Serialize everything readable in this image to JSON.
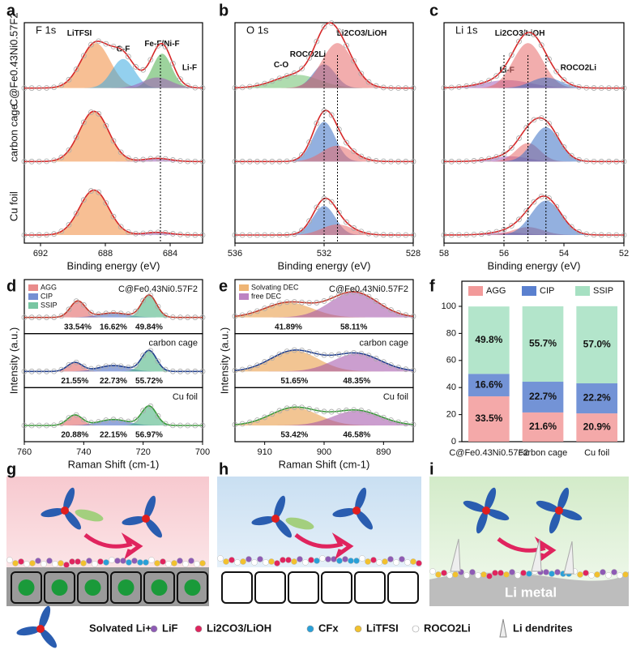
{
  "chart_data": [
    {
      "type": "spectrum",
      "panel": "a",
      "title": "F 1s",
      "xlabel": "Binding energy (eV)",
      "xlim": [
        693,
        682
      ],
      "xticks": [
        692,
        688,
        684
      ],
      "legend": false,
      "line_color": "#d62728",
      "components": [
        {
          "name": "LiTFSI",
          "color": "#f08a3c"
        },
        {
          "name": "C-F",
          "color": "#3aa9e0"
        },
        {
          "name": "Fe-F/Ni-F",
          "color": "#4cae4c"
        },
        {
          "name": "Li-F",
          "color": "#a05cb8"
        }
      ],
      "markers": [
        684.6
      ],
      "rows": [
        {
          "label": "C@Fe0.43Ni0.57F2",
          "peaks": [
            [
              688.6,
              0.85,
              0.9
            ],
            [
              686.9,
              0.55,
              0.7
            ],
            [
              684.5,
              0.65,
              0.6
            ],
            [
              684.8,
              0.2,
              0.9
            ]
          ]
        },
        {
          "label": "carbon cage",
          "peaks": [
            [
              688.7,
              0.95,
              0.9
            ],
            null,
            null,
            [
              684.8,
              0.06,
              0.8
            ]
          ]
        },
        {
          "label": "Cu foil",
          "peaks": [
            [
              688.7,
              0.85,
              0.9
            ],
            null,
            null,
            [
              684.8,
              0.05,
              0.8
            ]
          ]
        }
      ]
    },
    {
      "type": "spectrum",
      "panel": "b",
      "title": "O 1s",
      "xlabel": "Binding energy (eV)",
      "xlim": [
        536,
        528
      ],
      "xticks": [
        536,
        532,
        528
      ],
      "legend": false,
      "line_color": "#d62728",
      "components": [
        {
          "name": "C-O",
          "color": "#6dbf6d"
        },
        {
          "name": "ROCO2Li",
          "color": "#3b6fc4"
        },
        {
          "name": "Li2CO3/LiOH",
          "color": "#e86a6a"
        }
      ],
      "markers": [
        532.0,
        531.4
      ],
      "rows": [
        {
          "peaks": [
            [
              533.2,
              0.25,
              1.0
            ],
            [
              532.0,
              0.45,
              0.5
            ],
            [
              531.4,
              0.85,
              0.7
            ]
          ]
        },
        {
          "peaks": [
            null,
            [
              532.0,
              0.75,
              0.5
            ],
            [
              531.4,
              0.3,
              0.7
            ]
          ]
        },
        {
          "peaks": [
            null,
            [
              532.0,
              0.55,
              0.5
            ],
            [
              531.4,
              0.2,
              0.7
            ]
          ]
        }
      ]
    },
    {
      "type": "spectrum",
      "panel": "c",
      "title": "Li 1s",
      "xlabel": "Binding energy (eV)",
      "xlim": [
        58,
        52
      ],
      "xticks": [
        58,
        56,
        54,
        52
      ],
      "legend": false,
      "line_color": "#d62728",
      "components": [
        {
          "name": "Li-F",
          "color": "#a05cb8"
        },
        {
          "name": "Li2CO3/LiOH",
          "color": "#e86a6a"
        },
        {
          "name": "ROCO2Li",
          "color": "#3b6fc4"
        }
      ],
      "markers": [
        56.0,
        55.2,
        54.6
      ],
      "rows": [
        {
          "peaks": [
            [
              55.9,
              0.15,
              0.8
            ],
            [
              55.2,
              0.85,
              0.5
            ],
            [
              54.6,
              0.2,
              0.5
            ]
          ]
        },
        {
          "peaks": [
            [
              55.8,
              0.1,
              0.6
            ],
            [
              55.2,
              0.35,
              0.4
            ],
            [
              54.6,
              0.65,
              0.45
            ]
          ]
        },
        {
          "peaks": [
            [
              55.9,
              0.05,
              0.6
            ],
            [
              55.2,
              0.15,
              0.5
            ],
            [
              54.6,
              0.65,
              0.5
            ]
          ]
        }
      ]
    },
    {
      "type": "spectrum",
      "panel": "d",
      "ylabel": "Intensity (a.u.)",
      "xlabel": "Raman Shift (cm-1)",
      "xlim": [
        760,
        700
      ],
      "xticks": [
        760,
        740,
        720,
        700
      ],
      "legend": true,
      "components": [
        {
          "name": "AGG",
          "color": "#e05a5a"
        },
        {
          "name": "CIP",
          "color": "#3b5fc0"
        },
        {
          "name": "SSIP",
          "color": "#3fae7a"
        }
      ],
      "rows": [
        {
          "label": "C@Fe0.43Ni0.57F2",
          "line_color": "#c0392b",
          "peaks": [
            [
              742,
              0.55,
              2.5
            ],
            [
              730,
              0.15,
              5
            ],
            [
              718,
              0.75,
              2.5
            ]
          ],
          "percents": [
            33.54,
            16.62,
            49.84
          ],
          "value_labels": [
            "33.54%",
            "16.62%",
            "49.84%"
          ]
        },
        {
          "label": "carbon cage",
          "line_color": "#23408e",
          "peaks": [
            [
              743,
              0.3,
              2.5
            ],
            [
              730,
              0.2,
              5
            ],
            [
              718,
              0.7,
              2.5
            ]
          ],
          "percents": [
            21.55,
            22.73,
            55.72
          ],
          "value_labels": [
            "21.55%",
            "22.73%",
            "55.72%"
          ]
        },
        {
          "label": "Cu foil",
          "line_color": "#3a9a3a",
          "peaks": [
            [
              743,
              0.35,
              2.5
            ],
            [
              730,
              0.2,
              5
            ],
            [
              718,
              0.65,
              2.5
            ]
          ],
          "percents": [
            20.88,
            22.15,
            56.97
          ],
          "value_labels": [
            "20.88%",
            "22.15%",
            "56.97%"
          ]
        }
      ]
    },
    {
      "type": "spectrum",
      "panel": "e",
      "ylabel": "Intensity (a.u.)",
      "xlabel": "Raman Shift (cm-1)",
      "xlim": [
        915,
        885
      ],
      "xticks": [
        910,
        900,
        890
      ],
      "legend": true,
      "components": [
        {
          "name": "Solvating DEC",
          "color": "#e8963a"
        },
        {
          "name": "free DEC",
          "color": "#a04fa8"
        }
      ],
      "rows": [
        {
          "label": "C@Fe0.43Ni0.57F2",
          "line_color": "#c0392b",
          "peaks": [
            [
              906,
              0.5,
              4
            ],
            [
              895,
              0.85,
              4
            ]
          ],
          "percents": [
            41.89,
            58.11
          ],
          "value_labels": [
            "41.89%",
            "58.11%"
          ]
        },
        {
          "label": "carbon cage",
          "line_color": "#23408e",
          "peaks": [
            [
              905,
              0.7,
              4
            ],
            [
              894.5,
              0.6,
              4
            ]
          ],
          "percents": [
            51.65,
            48.35
          ],
          "value_labels": [
            "51.65%",
            "48.35%"
          ]
        },
        {
          "label": "Cu foil",
          "line_color": "#3a9a3a",
          "peaks": [
            [
              905,
              0.6,
              4
            ],
            [
              894.5,
              0.5,
              4
            ]
          ],
          "percents": [
            53.42,
            46.58
          ],
          "value_labels": [
            "53.42%",
            "46.58%"
          ]
        }
      ]
    },
    {
      "type": "stacked_bar",
      "panel": "f",
      "categories": [
        "C@Fe0.43Ni0.57F2",
        "carbon cage",
        "Cu foil"
      ],
      "ylim": [
        0,
        100
      ],
      "yticks": [
        0,
        20,
        40,
        60,
        80,
        100
      ],
      "series": [
        {
          "name": "AGG",
          "color": "#f29a9a",
          "values": [
            33.5,
            21.6,
            20.9
          ],
          "value_labels": [
            "33.5%",
            "21.6%",
            "20.9%"
          ]
        },
        {
          "name": "CIP",
          "color": "#5a80cf",
          "values": [
            16.6,
            22.7,
            22.2
          ],
          "value_labels": [
            "16.6%",
            "22.7%",
            "22.2%"
          ]
        },
        {
          "name": "SSIP",
          "color": "#a6e0c2",
          "values": [
            49.8,
            55.7,
            57.0
          ],
          "value_labels": [
            "49.8%",
            "55.7%",
            "57.0%"
          ]
        }
      ]
    }
  ],
  "schematics": {
    "panels": [
      "g",
      "h",
      "i"
    ],
    "metal_label": "Li metal",
    "legend": [
      "Solvated Li+",
      "LiF",
      "Li2CO3/LiOH",
      "CFx",
      "LiTFSI",
      "ROCO2Li",
      "Li dendrites"
    ]
  }
}
